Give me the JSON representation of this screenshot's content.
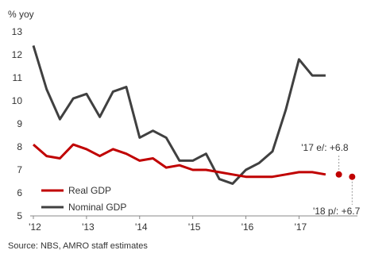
{
  "chart_data": {
    "type": "line",
    "ylabel": "% yoy",
    "ylim": [
      5,
      13
    ],
    "yticks": [
      5,
      6,
      7,
      8,
      9,
      10,
      11,
      12,
      13
    ],
    "xlim": [
      2012,
      2018.1
    ],
    "xtick_labels": [
      "'12",
      "'13",
      "'14",
      "'15",
      "'16",
      "'17"
    ],
    "xtick_values": [
      2012,
      2013,
      2014,
      2015,
      2016,
      2017
    ],
    "grid": false,
    "legend_position": "bottom-left",
    "series": [
      {
        "name": "Real GDP",
        "color": "#c00000",
        "x": [
          2012.0,
          2012.25,
          2012.5,
          2012.75,
          2013.0,
          2013.25,
          2013.5,
          2013.75,
          2014.0,
          2014.25,
          2014.5,
          2014.75,
          2015.0,
          2015.25,
          2015.5,
          2015.75,
          2016.0,
          2016.25,
          2016.5,
          2016.75,
          2017.0,
          2017.25,
          2017.5
        ],
        "values": [
          8.1,
          7.6,
          7.5,
          8.1,
          7.9,
          7.6,
          7.9,
          7.7,
          7.4,
          7.5,
          7.1,
          7.2,
          7.0,
          7.0,
          6.9,
          6.8,
          6.7,
          6.7,
          6.7,
          6.8,
          6.9,
          6.9,
          6.8
        ]
      },
      {
        "name": "Nominal GDP",
        "color": "#404040",
        "x": [
          2012.0,
          2012.25,
          2012.5,
          2012.75,
          2013.0,
          2013.25,
          2013.5,
          2013.75,
          2014.0,
          2014.25,
          2014.5,
          2014.75,
          2015.0,
          2015.25,
          2015.5,
          2015.75,
          2016.0,
          2016.25,
          2016.5,
          2016.75,
          2017.0,
          2017.25,
          2017.5
        ],
        "values": [
          12.4,
          10.5,
          9.2,
          10.1,
          10.3,
          9.3,
          10.4,
          10.6,
          8.4,
          8.7,
          8.4,
          7.4,
          7.4,
          7.7,
          6.6,
          6.4,
          7.0,
          7.3,
          7.8,
          9.6,
          11.8,
          11.1,
          11.1
        ]
      }
    ],
    "points": [
      {
        "label": "'17 e/: +6.8",
        "x": 2017.75,
        "value": 6.8,
        "color": "#c00000"
      },
      {
        "label": "'18 p/: +6.7",
        "x": 2018.0,
        "value": 6.7,
        "color": "#c00000"
      }
    ],
    "source": "Source: NBS, AMRO staff estimates"
  }
}
